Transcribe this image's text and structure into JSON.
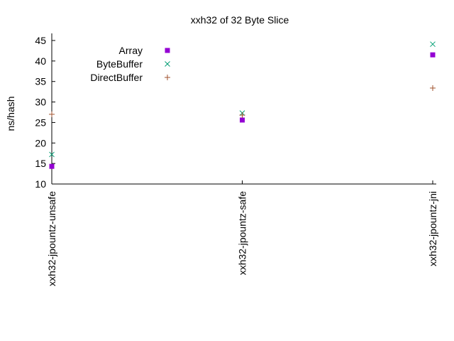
{
  "chart_data": {
    "type": "scatter",
    "title": "xxh32 of 32 Byte Slice",
    "xlabel": "",
    "ylabel": "ns/hash",
    "ylim": [
      10,
      45
    ],
    "yticks": [
      "10",
      "15",
      "20",
      "25",
      "30",
      "35",
      "40",
      "45"
    ],
    "categories": [
      "xxh32-jpountz-unsafe",
      "xxh32-jpountz-safe",
      "xxh32-jpountz-jni"
    ],
    "grid": false,
    "legend_position": "top-left",
    "series": [
      {
        "name": "Array",
        "marker": "square",
        "color": "#9400d3",
        "values": [
          14.3,
          25.6,
          41.5
        ]
      },
      {
        "name": "ByteBuffer",
        "marker": "x",
        "color": "#009e73",
        "values": [
          17.2,
          27.3,
          44.1
        ]
      },
      {
        "name": "DirectBuffer",
        "marker": "plus",
        "color": "#a0522d",
        "values": [
          27.0,
          26.8,
          33.4
        ]
      }
    ]
  }
}
